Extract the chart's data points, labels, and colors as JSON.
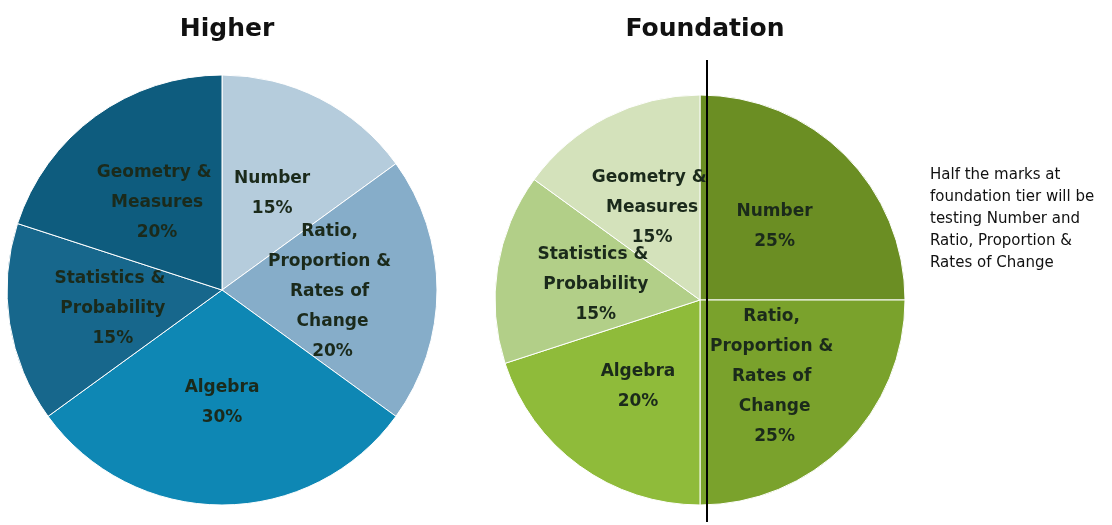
{
  "chart_data": [
    {
      "type": "pie",
      "title": "Higher",
      "categories": [
        "Number",
        "Ratio, Proportion & Rates of Change",
        "Algebra",
        "Statistics & Probability",
        "Geometry & Measures"
      ],
      "values": [
        15,
        20,
        30,
        15,
        20
      ],
      "value_labels": [
        "15%",
        "20%",
        "30%",
        "15%",
        "20%"
      ],
      "colors": [
        "#b5ccdc",
        "#86adc9",
        "#0e87b4",
        "#17678c",
        "#0e5c7e"
      ]
    },
    {
      "type": "pie",
      "title": "Foundation",
      "categories": [
        "Number",
        "Ratio, Proportion & Rates of Change",
        "Algebra",
        "Statistics & Probability",
        "Geometry & Measures"
      ],
      "values": [
        25,
        25,
        20,
        15,
        15
      ],
      "value_labels": [
        "25%",
        "25%",
        "20%",
        "15%",
        "15%"
      ],
      "colors": [
        "#6b8e23",
        "#7aa22c",
        "#8fbb3a",
        "#b2cf88",
        "#d4e2bb"
      ],
      "annotations": [
        "Half the marks at foundation tier will be testing Number and Ratio, Proportion & Rates of Change"
      ]
    }
  ]
}
